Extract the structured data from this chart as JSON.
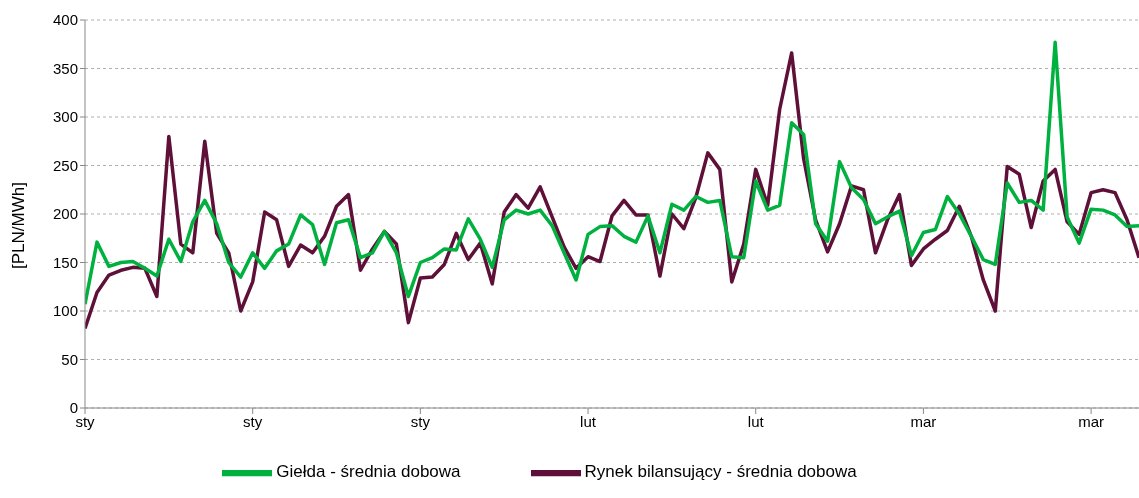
{
  "chart_data": {
    "type": "line",
    "ylabel": "[PLN/MWh]",
    "x": [
      "--01-01",
      "--01-02",
      "--01-03",
      "--01-04",
      "--01-05",
      "--01-06",
      "--01-07",
      "--01-08",
      "--01-09",
      "--01-10",
      "--01-11",
      "--01-12",
      "--01-13",
      "--01-14",
      "--01-15",
      "--01-16",
      "--01-17",
      "--01-18",
      "--01-19",
      "--01-20",
      "--01-21",
      "--01-22",
      "--01-23",
      "--01-24",
      "--01-25",
      "--01-26",
      "--01-27",
      "--01-28",
      "--01-29",
      "--01-30",
      "--01-31",
      "--02-01",
      "--02-02",
      "--02-03",
      "--02-04",
      "--02-05",
      "--02-06",
      "--02-07",
      "--02-08",
      "--02-09",
      "--02-10",
      "--02-11",
      "--02-12",
      "--02-13",
      "--02-14",
      "--02-15",
      "--02-16",
      "--02-17",
      "--02-18",
      "--02-19",
      "--02-20",
      "--02-21",
      "--02-22",
      "--02-23",
      "--02-24",
      "--02-25",
      "--02-26",
      "--02-27",
      "--02-28",
      "--03-01",
      "--03-02",
      "--03-03",
      "--03-04",
      "--03-05",
      "--03-06",
      "--03-07",
      "--03-08",
      "--03-09",
      "--03-10",
      "--03-11",
      "--03-12",
      "--03-13",
      "--03-14",
      "--03-15",
      "--03-16",
      "--03-17",
      "--03-18",
      "--03-19",
      "--03-20",
      "--03-21",
      "--03-22",
      "--03-23",
      "--03-24",
      "--03-25",
      "--03-26",
      "--03-27",
      "--03-28",
      "--03-29",
      "--03-30"
    ],
    "series": [
      {
        "name": "Rynek bilansujący - średnia dobowa",
        "color": "#5e1038",
        "values": [
          82,
          119,
          137,
          142,
          145,
          144,
          115,
          280,
          169,
          160,
          275,
          180,
          160,
          100,
          130,
          202,
          194,
          146,
          168,
          160,
          177,
          208,
          220,
          142,
          164,
          182,
          169,
          88,
          134,
          135,
          148,
          180,
          153,
          170,
          128,
          202,
          220,
          206,
          228,
          197,
          166,
          144,
          156,
          151,
          198,
          214,
          199,
          199,
          136,
          200,
          185,
          217,
          263,
          246,
          130,
          169,
          246,
          209,
          308,
          366,
          257,
          194,
          161,
          190,
          229,
          225,
          160,
          194,
          220,
          147,
          164,
          174,
          183,
          208,
          177,
          132,
          100,
          249,
          241,
          186,
          234,
          246,
          192,
          179,
          222,
          225,
          222,
          194,
          155
        ]
      },
      {
        "name": "Giełda - średnia dobowa",
        "color": "#00b140",
        "values": [
          107,
          171,
          146,
          150,
          151,
          144,
          136,
          174,
          151,
          192,
          214,
          190,
          150,
          135,
          160,
          144,
          162,
          169,
          199,
          189,
          148,
          191,
          194,
          155,
          160,
          182,
          160,
          115,
          150,
          155,
          164,
          163,
          195,
          174,
          145,
          194,
          204,
          200,
          204,
          188,
          160,
          132,
          179,
          187,
          188,
          177,
          171,
          198,
          160,
          210,
          204,
          218,
          212,
          214,
          156,
          155,
          234,
          204,
          209,
          294,
          282,
          190,
          172,
          254,
          227,
          215,
          190,
          197,
          203,
          157,
          181,
          184,
          218,
          200,
          177,
          153,
          148,
          232,
          212,
          214,
          204,
          377,
          197,
          170,
          205,
          204,
          199,
          187,
          188
        ]
      }
    ],
    "xlim": [
      "--01-01",
      "--03-30"
    ],
    "xticks": [
      {
        "value": "--01-01",
        "label": "sty"
      },
      {
        "value": "--01-15",
        "label": "sty"
      },
      {
        "value": "--01-29",
        "label": "sty"
      },
      {
        "value": "--02-12",
        "label": "lut"
      },
      {
        "value": "--02-26",
        "label": "lut"
      },
      {
        "value": "--03-12",
        "label": "mar"
      },
      {
        "value": "--03-26",
        "label": "mar"
      }
    ],
    "ylim": [
      0,
      400
    ],
    "yticks": [
      0,
      50,
      100,
      150,
      200,
      250,
      300,
      350,
      400
    ],
    "grid": "y",
    "legend": "bottom",
    "marker": "none",
    "line_style": "solid"
  }
}
